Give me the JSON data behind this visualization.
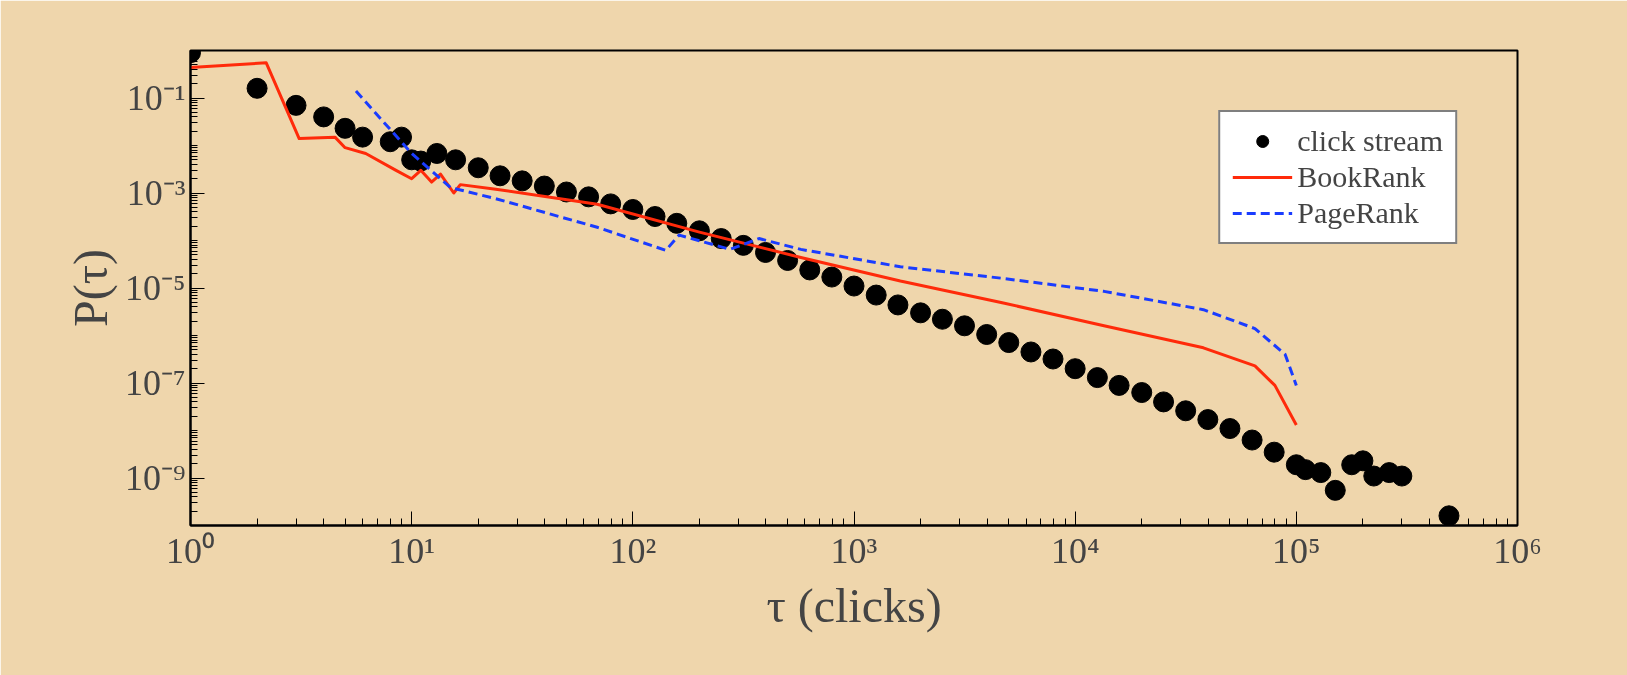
{
  "chart_data": {
    "type": "line",
    "xlabel": "τ (clicks)",
    "ylabel": "P(τ)",
    "log": "xy",
    "grid": false,
    "legend": "top right",
    "xlim": [
      1,
      1000000
    ],
    "ylim": [
      1e-10,
      1
    ],
    "xticks": [
      {
        "value": 1,
        "label": "10⁰"
      },
      {
        "value": 10,
        "label": "10¹"
      },
      {
        "value": 100,
        "label": "10²"
      },
      {
        "value": 1000,
        "label": "10³"
      },
      {
        "value": 10000,
        "label": "10⁴"
      },
      {
        "value": 100000,
        "label": "10⁵"
      },
      {
        "value": 1000000,
        "label": "10⁶"
      }
    ],
    "yticks": [
      {
        "value": 0.1,
        "label": "10⁻¹"
      },
      {
        "value": 0.001,
        "label": "10⁻³"
      },
      {
        "value": 1e-05,
        "label": "10⁻⁵"
      },
      {
        "value": 1e-07,
        "label": "10⁻⁷"
      },
      {
        "value": 1e-09,
        "label": "10⁻⁹"
      }
    ],
    "series": [
      {
        "name": "click stream",
        "type": "scatter",
        "marker": "circle",
        "color": "#000000",
        "x": [
          1,
          2,
          3,
          4,
          5,
          6,
          8,
          9,
          10,
          11,
          13,
          15.8,
          20,
          25.1,
          31.6,
          39.8,
          50.1,
          63.1,
          79.4,
          100,
          126,
          158,
          200,
          251,
          316,
          398,
          501,
          631,
          794,
          1000,
          1260,
          1580,
          2000,
          2510,
          3160,
          3980,
          5010,
          6310,
          7940,
          10000,
          12600,
          15800,
          20000,
          25100,
          31600,
          39800,
          50100,
          63100,
          79400,
          100000,
          110000,
          129000,
          150000,
          178000,
          200000,
          224000,
          263000,
          300000,
          490000
        ],
        "values": [
          0.9,
          0.16,
          0.07,
          0.04,
          0.023,
          0.015,
          0.012,
          0.015,
          0.005,
          0.0047,
          0.0068,
          0.005,
          0.0034,
          0.0023,
          0.0018,
          0.0014,
          0.00105,
          0.00083,
          0.00059,
          0.00045,
          0.00032,
          0.00023,
          0.00016,
          0.00011,
          7.9e-05,
          5.6e-05,
          3.8e-05,
          2.4e-05,
          1.7e-05,
          1.1e-05,
          7.1e-06,
          4.4e-06,
          3e-06,
          2.2e-06,
          1.6e-06,
          1.05e-06,
          7.1e-07,
          4.5e-07,
          3.2e-07,
          2e-07,
          1.3e-07,
          8.9e-08,
          6.3e-08,
          4e-08,
          2.6e-08,
          1.7e-08,
          1.1e-08,
          6.3e-09,
          3.5e-09,
          1.9e-09,
          1.5e-09,
          1.3e-09,
          5.5e-10,
          1.9e-09,
          2.3e-09,
          1.1e-09,
          1.3e-09,
          1.1e-09,
          1.6e-10
        ]
      },
      {
        "name": "BookRank",
        "line_style": "solid",
        "color": "#ff2a0a",
        "x": [
          1,
          2.2,
          3.1,
          4.5,
          5,
          6.2,
          8.5,
          10,
          11,
          12.3,
          13.5,
          15.5,
          16.6,
          24,
          69,
          200,
          575,
          1620,
          4680,
          13500,
          38000,
          65000,
          80000,
          100000
        ],
        "values": [
          0.44,
          0.55,
          0.014,
          0.015,
          0.009,
          0.0068,
          0.003,
          0.002,
          0.003,
          0.0017,
          0.0025,
          0.001,
          0.0015,
          0.0012,
          0.00058,
          0.00015,
          4.4e-05,
          1.4e-05,
          4.9e-06,
          1.6e-06,
          5.5e-07,
          2.3e-07,
          8.9e-08,
          1.3e-08
        ]
      },
      {
        "name": "PageRank",
        "line_style": "dashed",
        "color": "#1a3cff",
        "x": [
          5.6,
          10,
          15,
          24,
          69,
          141,
          162,
          275,
          372,
          575,
          1620,
          4680,
          13500,
          38000,
          65000,
          89000,
          100000
        ],
        "values": [
          0.14,
          0.0068,
          0.0013,
          0.00076,
          0.00019,
          6.2e-05,
          0.00013,
          6.5e-05,
          0.00011,
          6.5e-05,
          2.8e-05,
          1.6e-05,
          8.5e-06,
          3.5e-06,
          1.4e-06,
          4e-07,
          8.9e-08
        ]
      }
    ]
  }
}
